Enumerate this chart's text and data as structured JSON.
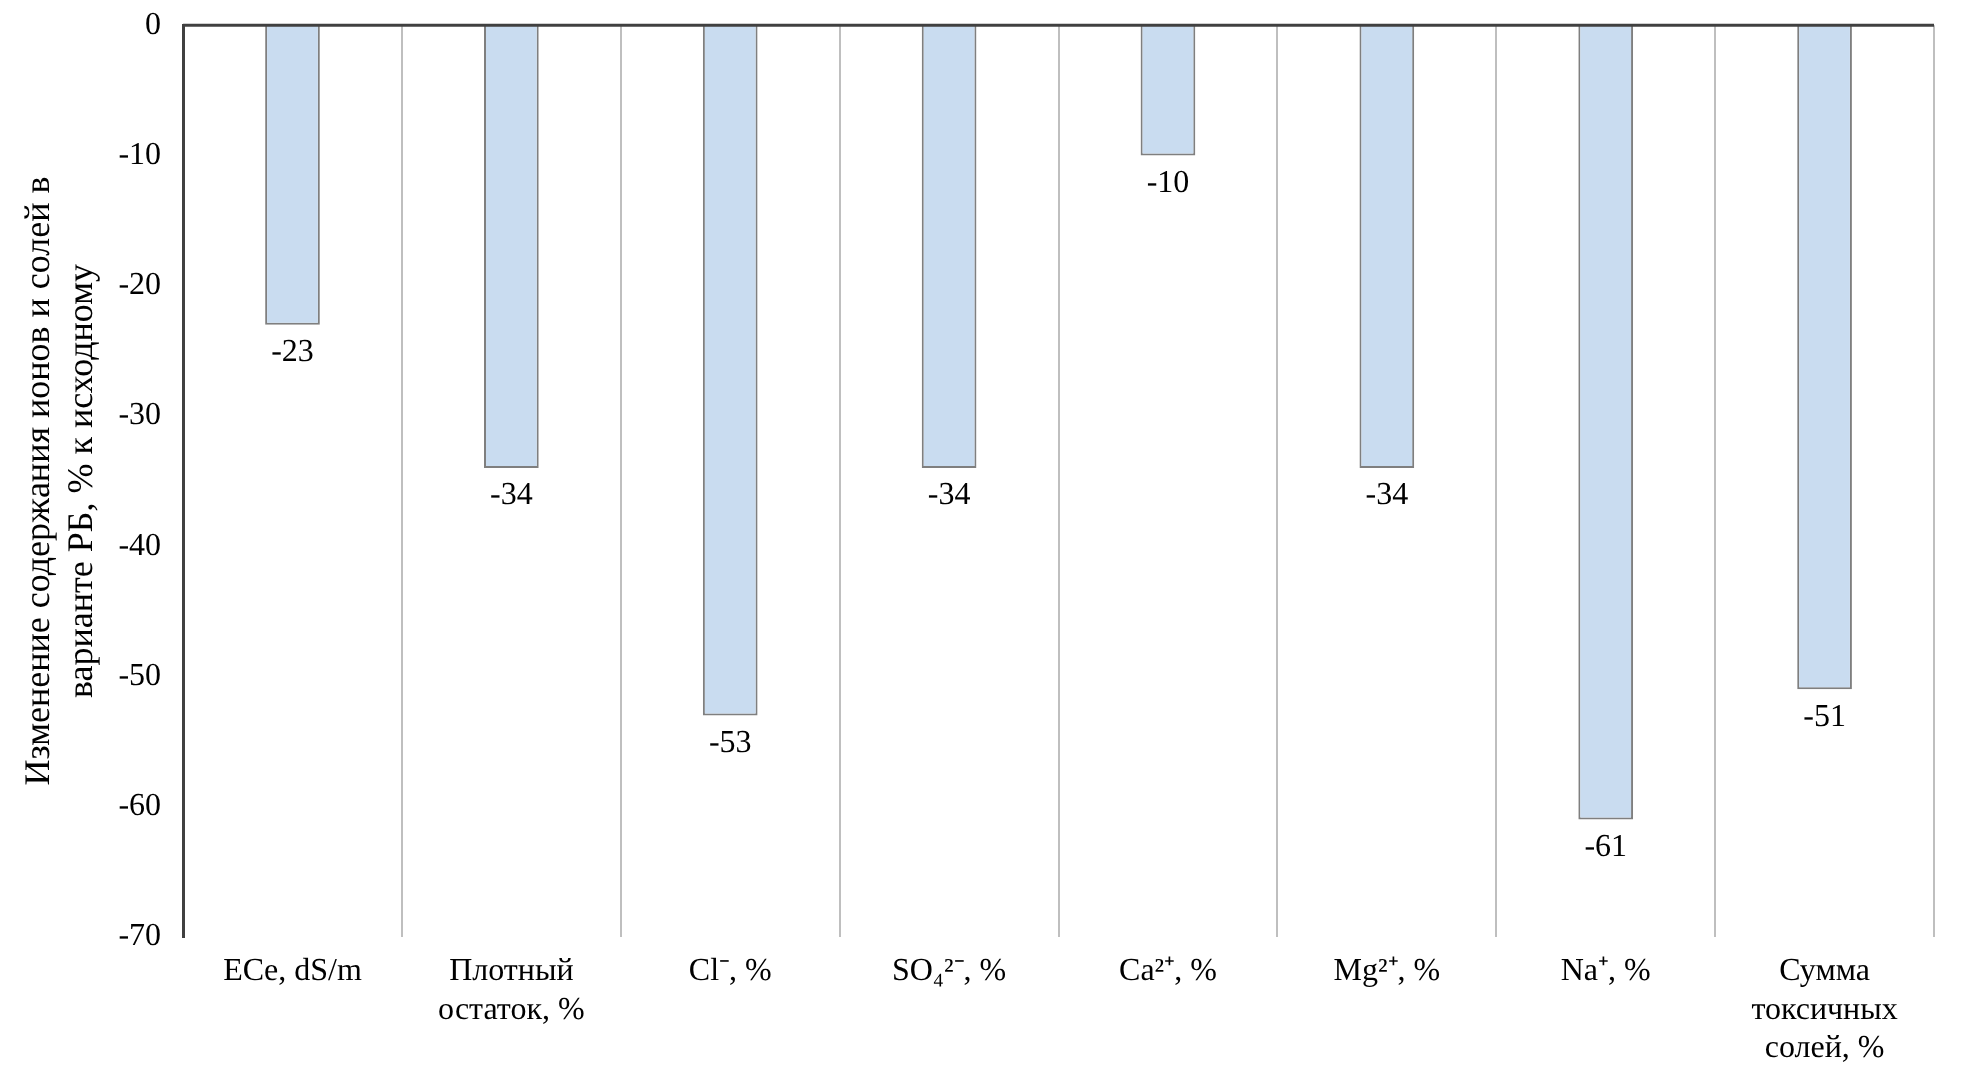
{
  "chart_data": {
    "type": "bar",
    "ylabel": "Изменение содержания ионов и солей в варианте РБ, % к исходному",
    "categories": [
      "ECe, dS/m",
      "Плотный остаток, %",
      "Cl⁻, %",
      "SO₄²⁻, %",
      "Ca²⁺, %",
      "Mg²⁺, %",
      "Na⁺, %",
      "Сумма токсичных солей, %"
    ],
    "values": [
      -23,
      -34,
      -53,
      -34,
      -10,
      -34,
      -61,
      -51
    ],
    "color": "#c9dcf0",
    "ylim": [
      -70,
      0
    ],
    "yticks": [
      0,
      -10,
      -20,
      -30,
      -40,
      -50,
      -60,
      -70
    ],
    "grid": "x",
    "legend": false,
    "data_labels": true
  }
}
